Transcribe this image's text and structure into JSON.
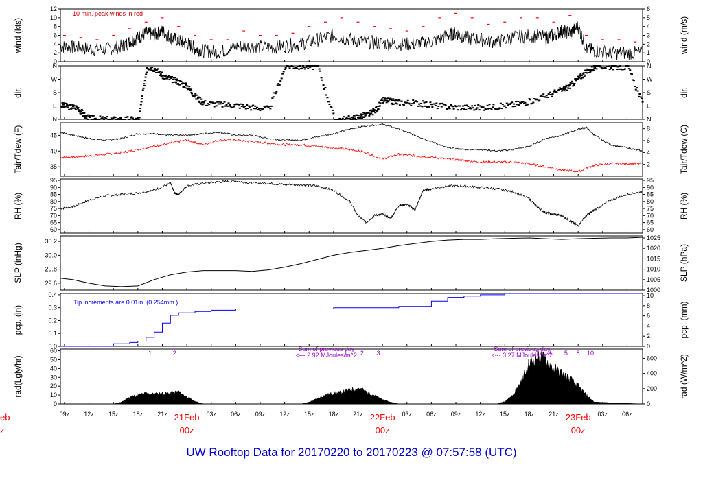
{
  "title": "UW Rooftop Data for 20170220  to  20170223 @ 07:57:58  (UTC)",
  "colors": {
    "main": "#000000",
    "peak": "#ff0000",
    "dewpoint": "#ff0000",
    "precip": "#0000ff",
    "annotation": "#9900cc",
    "date": "#ff0000",
    "note": "#cc0000",
    "title": "#0000cc"
  },
  "time_axis": {
    "start_hour": 8.5,
    "end_hour": 79.9,
    "tick_labels": [
      "09z",
      "12z",
      "15z",
      "18z",
      "21z",
      "",
      "03z",
      "06z",
      "09z",
      "12z",
      "15z",
      "18z",
      "21z",
      "",
      "03z",
      "06z",
      "09z",
      "12z",
      "15z",
      "18z",
      "21z",
      "",
      "03z",
      "06z"
    ],
    "tick_hours": [
      9,
      12,
      15,
      18,
      21,
      24,
      27,
      30,
      33,
      36,
      39,
      42,
      45,
      48,
      51,
      54,
      57,
      60,
      63,
      66,
      69,
      72,
      75,
      78
    ],
    "day_labels": [
      {
        "hour": 24,
        "date": "21Feb",
        "time": "00z"
      },
      {
        "hour": 48,
        "date": "22Feb",
        "time": "00z"
      },
      {
        "hour": 72,
        "date": "23Feb",
        "time": "00z"
      }
    ],
    "clipped_left_label": {
      "date": "eb",
      "time": "z"
    }
  },
  "chart_data": [
    {
      "type": "line",
      "id": "wind",
      "ylabel": "wind (kts)",
      "ylabel_right": "wind (m/s)",
      "ylim": [
        0,
        12
      ],
      "yticks": [
        "0",
        "2",
        "4",
        "6",
        "8",
        "10",
        "12"
      ],
      "ylim_right": [
        0,
        6
      ],
      "yticks_right": [
        "0",
        "1",
        "2",
        "3",
        "4",
        "5",
        "6"
      ],
      "note": "10 min. peak winds in red",
      "series": [
        {
          "key": "speed",
          "x": [
            8.5,
            10,
            12,
            14,
            16,
            17,
            18,
            19,
            20,
            21,
            22,
            23,
            24,
            25,
            26,
            28,
            30,
            32,
            34,
            36,
            38,
            40,
            42,
            44,
            46,
            48,
            50,
            52,
            54,
            56,
            57,
            58,
            60,
            62,
            64,
            66,
            68,
            69,
            70,
            71,
            72,
            73,
            74,
            76,
            78,
            79.9
          ],
          "values": [
            3.5,
            3.2,
            3,
            2.8,
            3.5,
            4.5,
            5.5,
            6.5,
            6,
            7,
            5.5,
            4.8,
            4.2,
            3,
            2.5,
            2.2,
            3.5,
            3.5,
            3.3,
            3.5,
            4,
            5,
            6,
            5,
            4.5,
            4.2,
            4,
            4,
            4.5,
            6,
            6.5,
            5.5,
            5,
            4.5,
            5.5,
            6,
            5.5,
            6,
            7,
            6.5,
            8,
            3,
            2.5,
            2,
            2,
            2
          ]
        },
        {
          "key": "peak",
          "x": [
            9,
            11,
            13,
            15,
            17,
            19,
            21,
            23,
            25,
            27,
            29,
            31,
            33,
            35,
            37,
            39,
            41,
            43,
            45,
            47,
            49,
            51,
            53,
            55,
            57,
            59,
            61,
            63,
            65,
            67,
            69,
            71,
            73,
            75,
            77,
            79
          ],
          "values": [
            6,
            5.5,
            5,
            6,
            7.5,
            9,
            10,
            8,
            6,
            5,
            5,
            7,
            6,
            6,
            6.5,
            8,
            9,
            10,
            9,
            8,
            7.5,
            7,
            8,
            10,
            11,
            10,
            8.5,
            9,
            10,
            10,
            9,
            10.5,
            6,
            5,
            5,
            4.5
          ]
        }
      ]
    },
    {
      "type": "scatter",
      "id": "direction",
      "ylabel": "dir.",
      "ylabel_right": "dir.",
      "yticks": [
        "N",
        "E",
        "S",
        "W",
        "N"
      ],
      "yticks_right": [
        "N",
        "E",
        "S",
        "W",
        "N"
      ],
      "ylim": [
        0,
        360
      ],
      "x": [
        8.5,
        9.5,
        10.5,
        11.5,
        12.5,
        14,
        16,
        18,
        19,
        20,
        21,
        22,
        23,
        24,
        25,
        26,
        28,
        30,
        32,
        34,
        36,
        38,
        40,
        42,
        44,
        45,
        46,
        47,
        48,
        49,
        50,
        52,
        54,
        56,
        58,
        60,
        62,
        64,
        66,
        68,
        70,
        71,
        72,
        73,
        74,
        76,
        78,
        79.9
      ],
      "values": [
        95,
        85,
        80,
        15,
        5,
        0,
        0,
        0,
        355,
        340,
        290,
        270,
        250,
        220,
        150,
        110,
        100,
        95,
        80,
        70,
        358,
        355,
        355,
        0,
        5,
        20,
        30,
        60,
        130,
        120,
        115,
        110,
        95,
        85,
        80,
        80,
        85,
        100,
        120,
        160,
        200,
        230,
        280,
        320,
        355,
        355,
        350,
        90
      ]
    },
    {
      "type": "line",
      "id": "temperature",
      "ylabel": "Tair/Tdew (F)",
      "ylabel_right": "Tair/Tdew (C)",
      "ylim": [
        32,
        49
      ],
      "yticks": [
        "35",
        "40",
        "45"
      ],
      "ylim_right": [
        0,
        9
      ],
      "yticks_right": [
        "2",
        "4",
        "6",
        "8"
      ],
      "series": [
        {
          "key": "air",
          "x": [
            8.5,
            10,
            12,
            14,
            16,
            18,
            20,
            22,
            24,
            26,
            28,
            30,
            32,
            34,
            36,
            38,
            40,
            42,
            44,
            46,
            48,
            50,
            52,
            54,
            56,
            58,
            60,
            62,
            64,
            66,
            68,
            70,
            72,
            73,
            74,
            76,
            78,
            79.9
          ],
          "values": [
            46,
            45,
            44,
            43.5,
            44,
            45.5,
            45.5,
            45,
            45,
            45.5,
            46,
            45,
            45,
            44,
            43.5,
            43.5,
            44.5,
            45.5,
            47,
            48,
            48.5,
            47,
            45,
            43,
            41,
            40.5,
            40.5,
            40,
            40.5,
            41.5,
            44,
            45,
            47,
            47.5,
            45,
            42,
            41,
            40
          ]
        },
        {
          "key": "dewpoint",
          "x": [
            8.5,
            10,
            12,
            14,
            16,
            18,
            20,
            22,
            24,
            26,
            28,
            30,
            32,
            34,
            36,
            38,
            40,
            42,
            44,
            46,
            48,
            50,
            52,
            54,
            56,
            58,
            60,
            62,
            64,
            66,
            68,
            70,
            72,
            74,
            76,
            78,
            79.9
          ],
          "values": [
            38,
            38,
            38.5,
            39,
            39.5,
            40.5,
            41.5,
            42.5,
            43.5,
            42,
            43.5,
            43.5,
            43,
            42.5,
            42,
            42,
            41.5,
            41,
            40.5,
            39.5,
            37.5,
            39,
            38.5,
            38,
            37.5,
            37,
            36.5,
            36.5,
            36.5,
            36,
            35,
            34,
            33.5,
            35.5,
            36,
            36,
            36
          ]
        }
      ]
    },
    {
      "type": "line",
      "id": "humidity",
      "ylabel": "RH (%)",
      "ylabel_right": "RH (%)",
      "ylim": [
        57.5,
        96
      ],
      "yticks": [
        "60",
        "65",
        "70",
        "75",
        "80",
        "85",
        "90",
        "95"
      ],
      "yticks_right": [
        "60",
        "65",
        "70",
        "75",
        "80",
        "85",
        "90",
        "95"
      ],
      "x": [
        8.5,
        10,
        12,
        14,
        16,
        18,
        20,
        22,
        22.5,
        23,
        24,
        26,
        28,
        30,
        32,
        34,
        36,
        38,
        40,
        42,
        44,
        45,
        46,
        47,
        48,
        49,
        50,
        51,
        52,
        53,
        54,
        56,
        58,
        60,
        62,
        64,
        66,
        67,
        68,
        69,
        70,
        71,
        72,
        73,
        74,
        76,
        78,
        79.9
      ],
      "values": [
        75,
        76,
        81,
        84,
        85,
        86,
        88,
        93,
        86,
        85,
        91,
        93,
        94,
        94.5,
        93,
        93,
        92,
        92,
        91,
        88,
        80,
        70,
        65,
        70,
        71,
        68,
        77,
        78,
        74,
        88,
        89,
        91,
        91,
        90,
        89,
        87,
        82,
        76,
        72,
        71,
        70,
        66,
        63,
        70,
        74,
        81,
        85,
        87
      ]
    },
    {
      "type": "line",
      "id": "pressure",
      "ylabel": "SLP (inHg)",
      "ylabel_right": "SLP (hPa)",
      "ylim": [
        29.5,
        30.28
      ],
      "yticks": [
        "29.6",
        "29.8",
        "30.0",
        "30.2"
      ],
      "ylim_right": [
        1000,
        1026
      ],
      "yticks_right": [
        "1000",
        "1005",
        "1010",
        "1015",
        "1020",
        "1025"
      ],
      "x": [
        8.5,
        10,
        12,
        14,
        16,
        18,
        20,
        22,
        24,
        26,
        28,
        30,
        32,
        34,
        36,
        38,
        40,
        42,
        44,
        46,
        48,
        50,
        52,
        54,
        56,
        58,
        60,
        62,
        64,
        66,
        68,
        70,
        72,
        74,
        76,
        78,
        79.9
      ],
      "values": [
        29.67,
        29.65,
        29.6,
        29.56,
        29.55,
        29.56,
        29.65,
        29.72,
        29.76,
        29.78,
        29.78,
        29.78,
        29.77,
        29.79,
        29.83,
        29.88,
        29.94,
        30.0,
        30.04,
        30.07,
        30.1,
        30.14,
        30.17,
        30.2,
        30.22,
        30.23,
        30.23,
        30.24,
        30.245,
        30.25,
        30.24,
        30.23,
        30.24,
        30.245,
        30.25,
        30.25,
        30.26
      ]
    },
    {
      "type": "line",
      "id": "precipitation",
      "ylabel": "pcp. (in)",
      "ylabel_right": "pcp. (mm)",
      "ylim": [
        0,
        0.41
      ],
      "yticks": [
        "0.0",
        "0.1",
        "0.2",
        "0.3",
        "0.4"
      ],
      "ylim_right": [
        0,
        10.41
      ],
      "yticks_right": [
        "0",
        "2",
        "4",
        "6",
        "8",
        "10"
      ],
      "note": "Tip increments are 0.01in. (0.254mm.)",
      "x": [
        8.5,
        12,
        15,
        16,
        17,
        18,
        19,
        20,
        21,
        22,
        23,
        24,
        25,
        27,
        30,
        33,
        36,
        39,
        42,
        44,
        46,
        48,
        50,
        52,
        54,
        56,
        58,
        60,
        63,
        66,
        69,
        72,
        75,
        79.9
      ],
      "values": [
        0,
        0,
        0.02,
        0.02,
        0.03,
        0.04,
        0.07,
        0.11,
        0.18,
        0.24,
        0.26,
        0.26,
        0.27,
        0.28,
        0.29,
        0.29,
        0.29,
        0.29,
        0.3,
        0.3,
        0.3,
        0.3,
        0.31,
        0.31,
        0.35,
        0.38,
        0.39,
        0.4,
        0.41,
        0.41,
        0.41,
        0.41,
        0.41,
        0.41
      ]
    },
    {
      "type": "area",
      "id": "radiation",
      "ylabel": "rad(Lgly/hr)",
      "ylabel_right": "rad (W/m^2)",
      "ylim": [
        0,
        62
      ],
      "yticks": [
        "0",
        "10",
        "20",
        "30",
        "40",
        "50",
        "60"
      ],
      "ylim_right": [
        0,
        721
      ],
      "yticks_right": [
        "0",
        "200",
        "400",
        "600"
      ],
      "x": [
        8.5,
        15,
        16,
        17,
        18,
        19,
        20,
        21,
        22,
        23,
        24,
        25,
        26,
        38,
        39,
        40,
        41,
        42,
        43,
        44,
        45,
        46,
        47,
        48,
        49,
        50,
        62,
        63,
        64,
        65,
        66,
        67,
        68,
        69,
        70,
        71,
        72,
        73,
        74,
        79.9
      ],
      "values": [
        0,
        0,
        2,
        8,
        10,
        12,
        11,
        12,
        12,
        14,
        8,
        3,
        0,
        0,
        2,
        6,
        10,
        12,
        13,
        16,
        18,
        14,
        10,
        5,
        2,
        0,
        0,
        3,
        10,
        25,
        45,
        55,
        50,
        40,
        35,
        28,
        20,
        10,
        2,
        0
      ],
      "hour_marks": [
        {
          "hour": 19.5,
          "label": "1"
        },
        {
          "hour": 22.5,
          "label": "2"
        },
        {
          "hour": 43.5,
          "label": "1"
        },
        {
          "hour": 45.5,
          "label": "2"
        },
        {
          "hour": 47.5,
          "label": "3"
        },
        {
          "hour": 67,
          "label": "1"
        },
        {
          "hour": 68.5,
          "label": "3"
        },
        {
          "hour": 70.5,
          "label": "5"
        },
        {
          "hour": 72,
          "label": "8"
        },
        {
          "hour": 73.5,
          "label": "10"
        }
      ],
      "daily_sums": [
        {
          "hour": 38,
          "line1": "Sum of previous day",
          "line2": "<--- 2.92 MJoules/m^2"
        },
        {
          "hour": 62,
          "line1": "Sum of previous day",
          "line2": "<--- 3.27 MJoules/m^2"
        }
      ]
    }
  ]
}
